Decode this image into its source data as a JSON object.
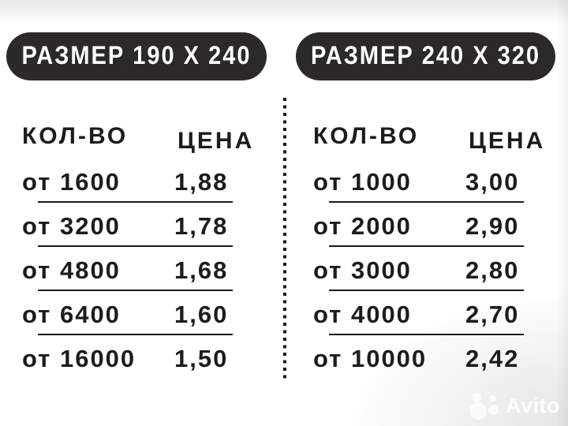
{
  "colors": {
    "background": "#ffffff",
    "pill_bg": "#2b2a29",
    "pill_text": "#ffffff",
    "table_text": "#1c1c1c",
    "rule": "#1a1a1a",
    "watermark": "#fdfdfd"
  },
  "chart_data": [
    {
      "type": "table",
      "title": "РАЗМЕР 190 X 240",
      "columns": [
        "КОЛ-ВО",
        "ЦЕНА"
      ],
      "rows": [
        [
          "от 1600",
          "1,88"
        ],
        [
          "от 3200",
          "1,78"
        ],
        [
          "от 4800",
          "1,68"
        ],
        [
          "от 6400",
          "1,60"
        ],
        [
          "от 16000",
          "1,50"
        ]
      ]
    },
    {
      "type": "table",
      "title": "РАЗМЕР 240 X 320",
      "columns": [
        "КОЛ-ВО",
        "ЦЕНА"
      ],
      "rows": [
        [
          "от 1000",
          "3,00"
        ],
        [
          "от 2000",
          "2,90"
        ],
        [
          "от 3000",
          "2,80"
        ],
        [
          "от 4000",
          "2,70"
        ],
        [
          "от 10000",
          "2,42"
        ]
      ]
    }
  ],
  "watermark": {
    "brand": "Avito"
  }
}
